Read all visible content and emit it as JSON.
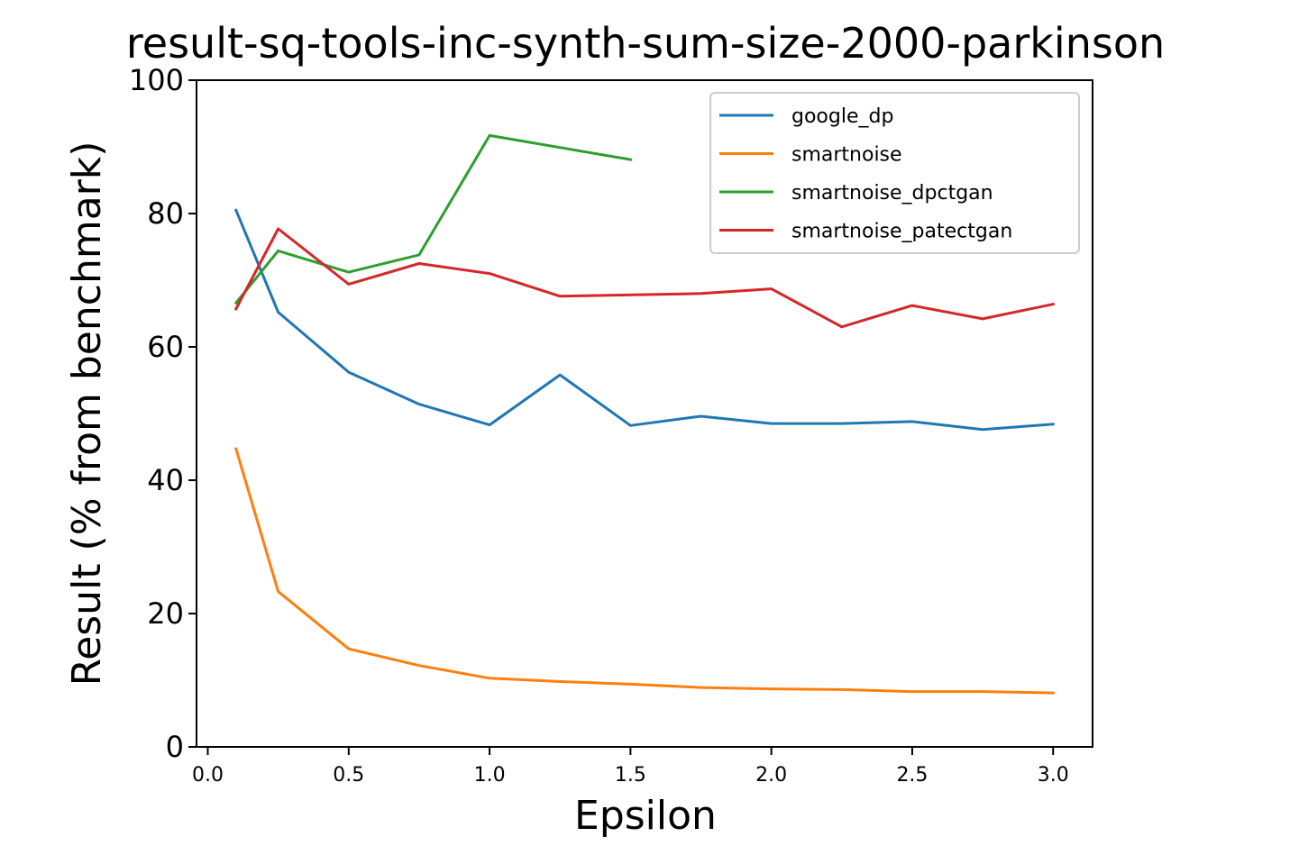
{
  "chart_data": {
    "type": "line",
    "title": "result-sq-tools-inc-synth-sum-size-2000-parkinson",
    "xlabel": "Epsilon",
    "ylabel": "Result (% from benchmark)",
    "xlim": [
      -0.04,
      3.14
    ],
    "ylim": [
      0,
      100
    ],
    "xticks": [
      0.0,
      0.5,
      1.0,
      1.5,
      2.0,
      2.5,
      3.0
    ],
    "xtick_labels": [
      "0.0",
      "0.5",
      "1.0",
      "1.5",
      "2.0",
      "2.5",
      "3.0"
    ],
    "yticks": [
      0,
      20,
      40,
      60,
      80,
      100
    ],
    "ytick_labels": [
      "0",
      "20",
      "40",
      "60",
      "80",
      "100"
    ],
    "grid": false,
    "legend_position": "top-right",
    "series": [
      {
        "name": "google_dp",
        "color": "#1f77b4",
        "x": [
          0.1,
          0.25,
          0.5,
          0.75,
          1.0,
          1.25,
          1.5,
          1.75,
          2.0,
          2.25,
          2.5,
          2.75,
          3.0
        ],
        "y": [
          80.5,
          65.2,
          56.2,
          51.4,
          48.3,
          55.8,
          48.2,
          49.6,
          48.5,
          48.5,
          48.8,
          47.6,
          48.4
        ]
      },
      {
        "name": "smartnoise",
        "color": "#ff7f0e",
        "x": [
          0.1,
          0.25,
          0.5,
          0.75,
          1.0,
          1.25,
          1.5,
          1.75,
          2.0,
          2.25,
          2.5,
          2.75,
          3.0
        ],
        "y": [
          44.7,
          23.3,
          14.7,
          12.2,
          10.3,
          9.8,
          9.4,
          8.9,
          8.7,
          8.6,
          8.3,
          8.3,
          8.1
        ]
      },
      {
        "name": "smartnoise_dpctgan",
        "color": "#2ca02c",
        "x": [
          0.1,
          0.25,
          0.5,
          0.75,
          1.0,
          1.5
        ],
        "y": [
          66.6,
          74.4,
          71.2,
          73.8,
          91.7,
          88.1
        ]
      },
      {
        "name": "smartnoise_patectgan",
        "color": "#d62728",
        "x": [
          0.1,
          0.25,
          0.5,
          0.75,
          1.0,
          1.25,
          1.75,
          2.0,
          2.25,
          2.5,
          2.75,
          3.0
        ],
        "y": [
          65.7,
          77.7,
          69.4,
          72.5,
          71.0,
          67.6,
          68.0,
          68.7,
          63.0,
          66.2,
          64.2,
          66.4
        ]
      }
    ]
  }
}
